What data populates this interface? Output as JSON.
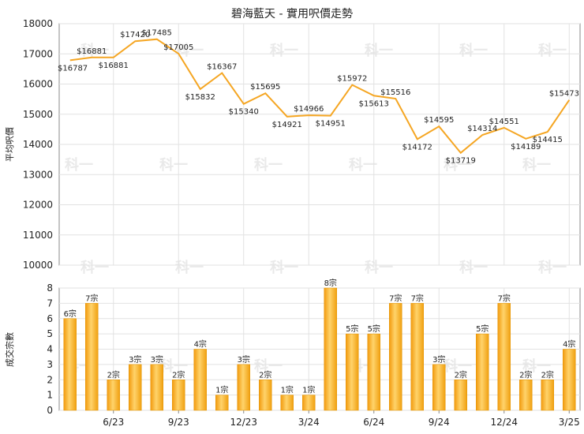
{
  "chart_data": [
    {
      "type": "line",
      "title": "碧海藍天 - 實用呎價走勢",
      "ylabel": "平均呎價",
      "ylim": [
        10000,
        18000
      ],
      "yticks": [
        10000,
        11000,
        12000,
        13000,
        14000,
        15000,
        16000,
        17000,
        18000
      ],
      "grid": true,
      "color": "#f5a623",
      "values": [
        16787,
        16881,
        16881,
        17420,
        17485,
        17005,
        15832,
        16367,
        15340,
        15695,
        14921,
        14966,
        14951,
        15972,
        15613,
        15516,
        14172,
        14595,
        13719,
        14314,
        14551,
        14189,
        14415,
        15473
      ],
      "labels": [
        "$16787",
        "$16881",
        "$16881",
        "$17420",
        "$17485",
        "$17005",
        "$15832",
        "$16367",
        "$15340",
        "$15695",
        "$14921",
        "$14966",
        "$14951",
        "$15972",
        "$15613",
        "$15516",
        "$14172",
        "$14595",
        "$13719",
        "$14314",
        "$14551",
        "$14189",
        "$14415",
        "$15473"
      ]
    },
    {
      "type": "bar",
      "ylabel": "成交宗數",
      "ylim": [
        0,
        8
      ],
      "yticks": [
        0,
        1,
        2,
        3,
        4,
        5,
        6,
        7,
        8
      ],
      "grid": true,
      "color": "#f0a818",
      "values": [
        6,
        7,
        2,
        3,
        3,
        2,
        4,
        1,
        3,
        2,
        1,
        1,
        8,
        5,
        5,
        7,
        7,
        3,
        2,
        5,
        7,
        2,
        2,
        4
      ],
      "labels": [
        "6宗",
        "7宗",
        "2宗",
        "3宗",
        "3宗",
        "2宗",
        "4宗",
        "1宗",
        "3宗",
        "2宗",
        "1宗",
        "1宗",
        "8宗",
        "5宗",
        "5宗",
        "7宗",
        "7宗",
        "3宗",
        "2宗",
        "5宗",
        "7宗",
        "2宗",
        "2宗",
        "4宗"
      ],
      "x_ticks": [
        {
          "label": "6/23",
          "index": 2
        },
        {
          "label": "9/23",
          "index": 5
        },
        {
          "label": "12/23",
          "index": 8
        },
        {
          "label": "3/24",
          "index": 11
        },
        {
          "label": "6/24",
          "index": 14
        },
        {
          "label": "9/24",
          "index": 17
        },
        {
          "label": "12/24",
          "index": 20
        },
        {
          "label": "3/25",
          "index": 23
        }
      ]
    }
  ],
  "watermark": "科一"
}
